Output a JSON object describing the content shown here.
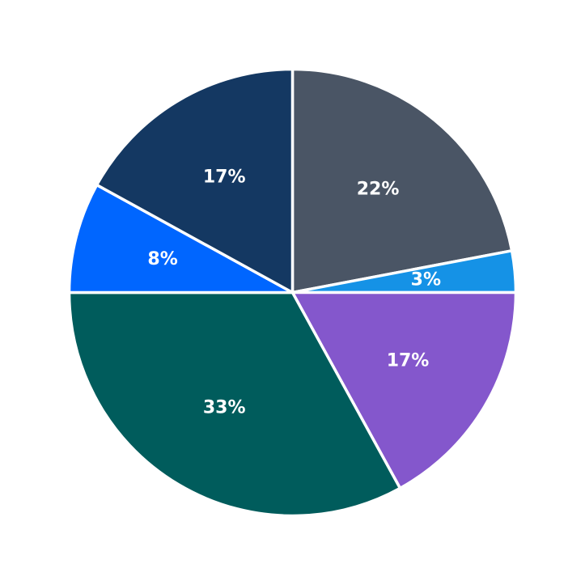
{
  "chart_data": {
    "type": "pie",
    "title": "",
    "slices": [
      {
        "value": 22,
        "label": "22%",
        "color": "#4a5565"
      },
      {
        "value": 3,
        "label": "3%",
        "color": "#1592e6"
      },
      {
        "value": 17,
        "label": "17%",
        "color": "#8457cc"
      },
      {
        "value": 33,
        "label": "33%",
        "color": "#005c5c"
      },
      {
        "value": 8,
        "label": "8%",
        "color": "#0066ff"
      },
      {
        "value": 17,
        "label": "17%",
        "color": "#143862"
      }
    ],
    "start": "top",
    "direction": "clockwise",
    "legend": "none"
  }
}
